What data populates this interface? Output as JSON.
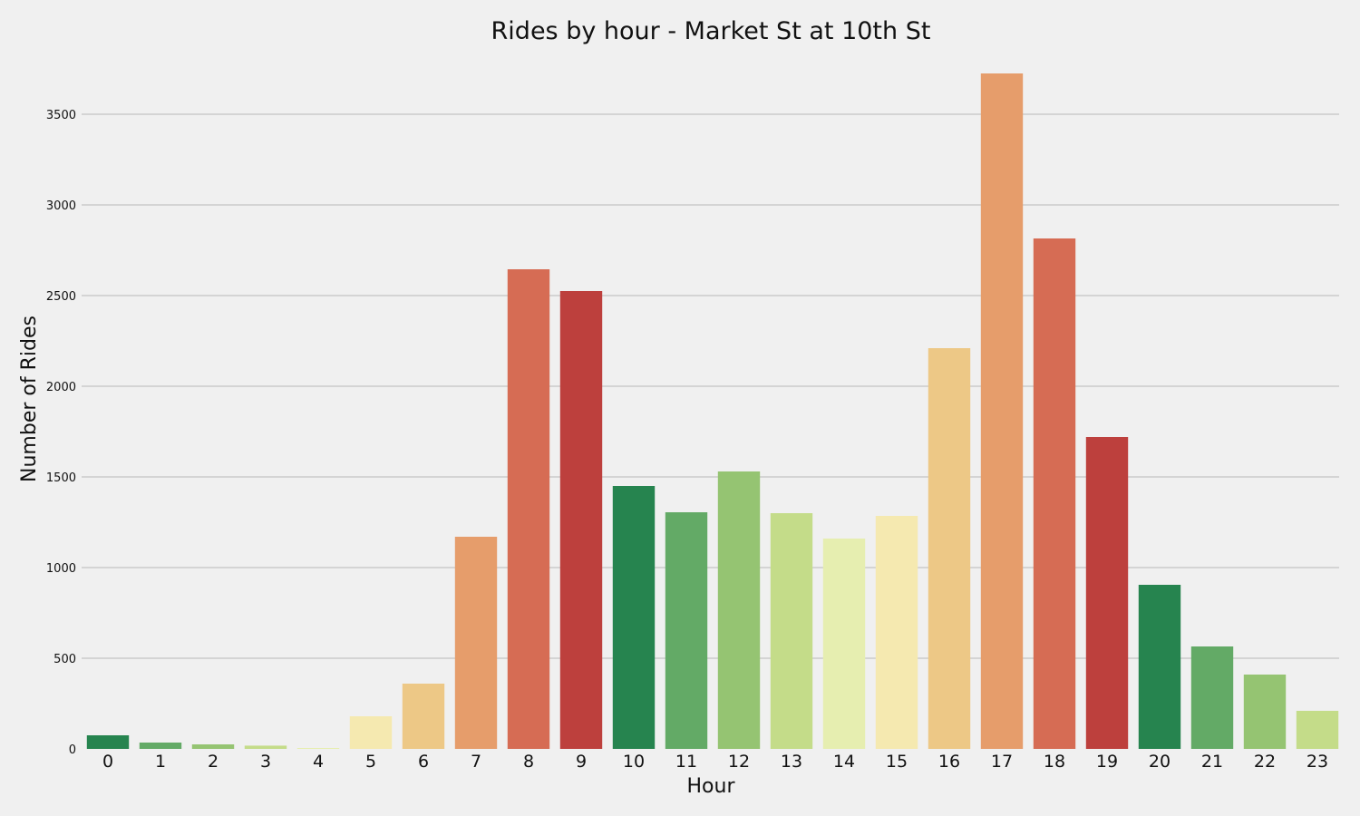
{
  "chart_data": {
    "type": "bar",
    "title": "Rides by hour - Market St at 10th St",
    "xlabel": "Hour",
    "ylabel": "Number of Rides",
    "categories": [
      "0",
      "1",
      "2",
      "3",
      "4",
      "5",
      "6",
      "7",
      "8",
      "9",
      "10",
      "11",
      "12",
      "13",
      "14",
      "15",
      "16",
      "17",
      "18",
      "19",
      "20",
      "21",
      "22",
      "23"
    ],
    "values": [
      75,
      35,
      25,
      18,
      5,
      180,
      360,
      1170,
      2645,
      2525,
      1450,
      1305,
      1530,
      1300,
      1160,
      1285,
      2210,
      3725,
      2815,
      1720,
      905,
      565,
      410,
      210
    ],
    "ylim": [
      0,
      3780
    ],
    "yticks": [
      0,
      500,
      1000,
      1500,
      2000,
      2500,
      3000,
      3500
    ],
    "grid": "horizontal",
    "legend": "none",
    "bar_colors": [
      "#26844f",
      "#63aa66",
      "#95c472",
      "#c4dc89",
      "#e6eeb0",
      "#f5e9b0",
      "#edc886",
      "#e69d6b",
      "#d66c54",
      "#bd403d"
    ],
    "background": "#f0f0f0",
    "gridline_color": "#cbcbcb"
  }
}
